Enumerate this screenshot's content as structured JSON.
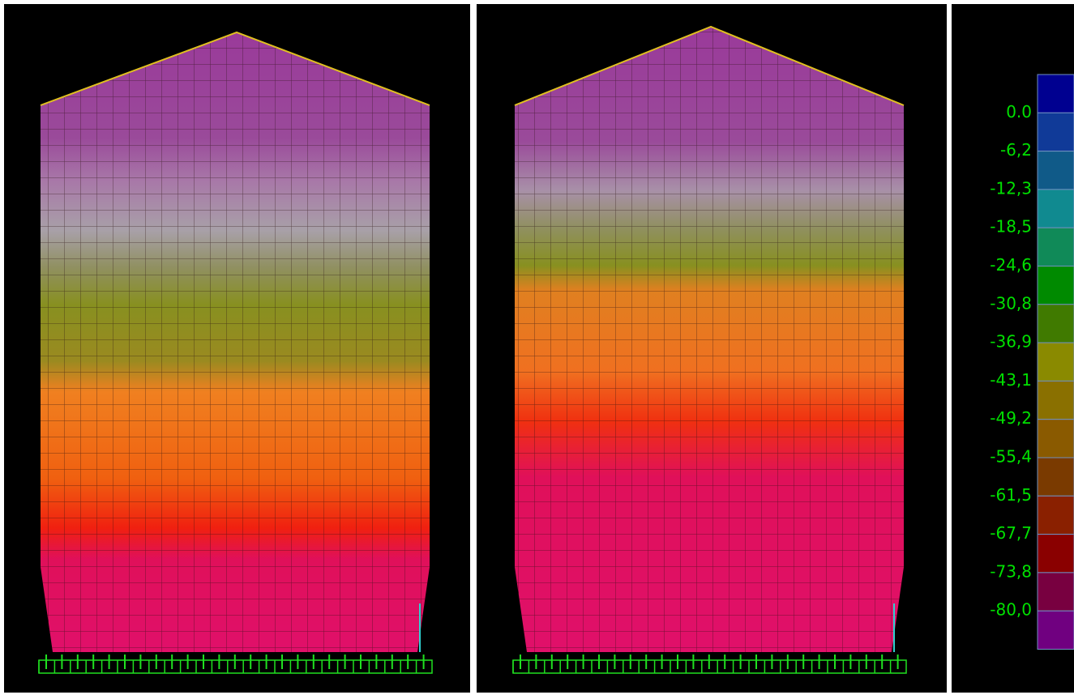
{
  "legend": {
    "labels": [
      "0.0",
      "-6,2",
      "-12,3",
      "-18,5",
      "-24,6",
      "-30,8",
      "-36,9",
      "-43,1",
      "-49,2",
      "-55,4",
      "-61,5",
      "-67,7",
      "-73,8",
      "-80,0"
    ]
  }
}
